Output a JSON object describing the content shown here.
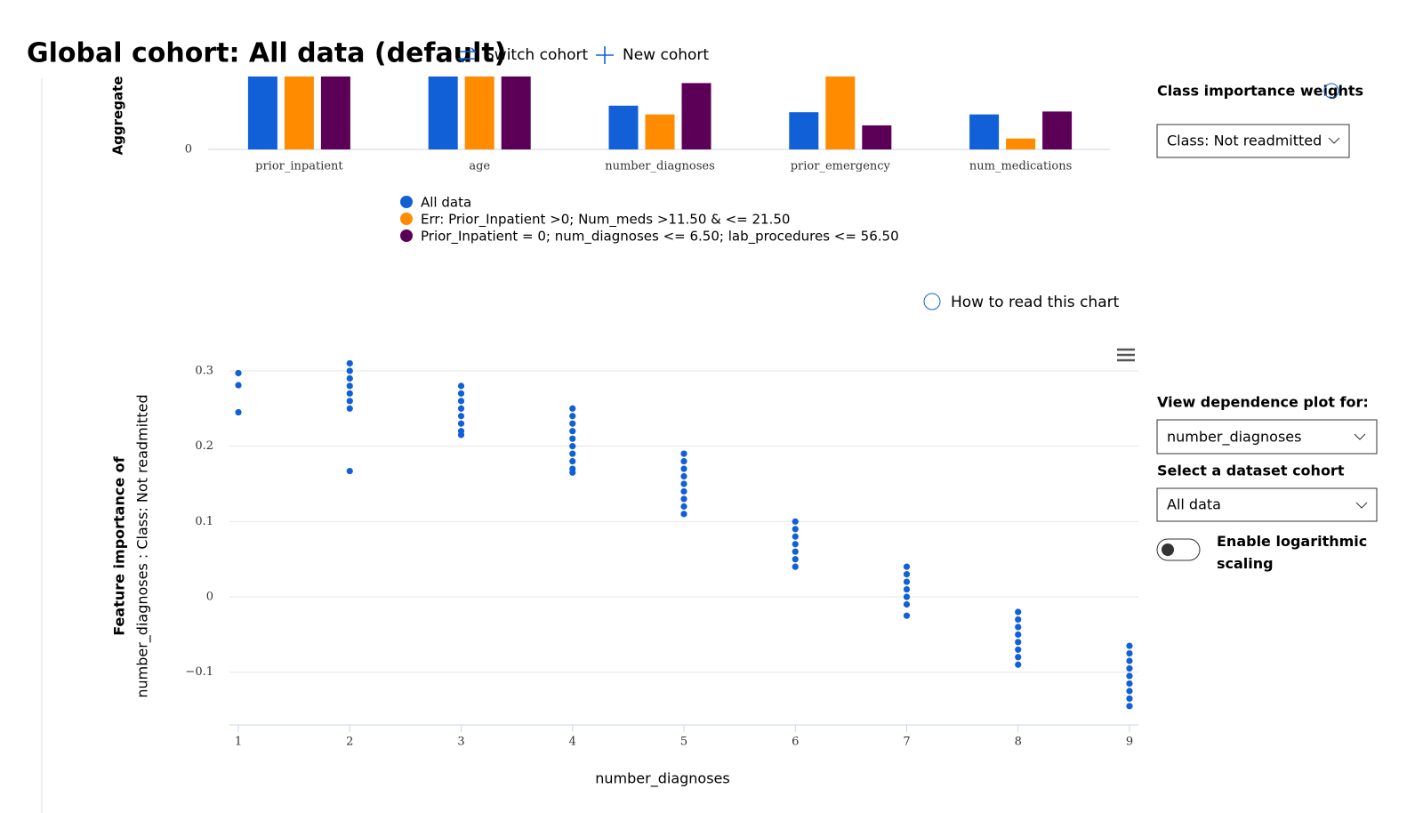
{
  "header": {
    "title": "Global cohort: All data (default)",
    "switch_cohort": "Switch cohort",
    "new_cohort": "New cohort"
  },
  "help_link": "How to read this chart",
  "side_panel": {
    "class_weights_label": "Class importance weights",
    "class_weights_value": "Class: Not readmitted",
    "dependence_label": "View dependence plot for:",
    "dependence_value": "number_diagnoses",
    "cohort_label": "Select a dataset cohort",
    "cohort_value": "All data",
    "log_toggle_label": "Enable logarithmic scaling"
  },
  "chart_data": [
    {
      "type": "bar",
      "ylabel": "Aggregate",
      "categories": [
        "prior_inpatient",
        "age",
        "number_diagnoses",
        "prior_emergency",
        "num_medications"
      ],
      "series": [
        {
          "name": "All data",
          "color": "#1160d8",
          "values": [
            1,
            1,
            0.6,
            0.51,
            0.48
          ]
        },
        {
          "name": "Err: Prior_Inpatient >0; Num_meds >11.50 & <= 21.50",
          "color": "#ff8c00",
          "values": [
            1,
            1,
            0.48,
            1,
            0.15
          ]
        },
        {
          "name": "Prior_Inpatient = 0; num_diagnoses <= 6.50; lab_procedures <= 56.50",
          "color": "#5c0057",
          "values": [
            1,
            1,
            0.91,
            0.33,
            0.52
          ]
        }
      ],
      "ylim": [
        0,
        1
      ],
      "yticks": [
        0
      ]
    },
    {
      "type": "scatter",
      "color": "#1160d8",
      "xlabel": "number_diagnoses",
      "ylabel": [
        "Feature importance of",
        "number_diagnoses : Class: Not readmitted"
      ],
      "x": [
        1,
        1,
        1,
        2,
        2,
        2,
        2,
        2,
        2,
        2,
        2,
        3,
        3,
        3,
        3,
        3,
        3,
        3,
        3,
        4,
        4,
        4,
        4,
        4,
        4,
        4,
        4,
        4,
        4,
        5,
        5,
        5,
        5,
        5,
        5,
        5,
        5,
        5,
        6,
        6,
        6,
        6,
        6,
        6,
        6,
        7,
        7,
        7,
        7,
        7,
        7,
        7,
        8,
        8,
        8,
        8,
        8,
        8,
        8,
        8,
        9,
        9,
        9,
        9,
        9,
        9,
        9,
        9,
        9
      ],
      "y": [
        0.297,
        0.281,
        0.245,
        0.31,
        0.3,
        0.29,
        0.28,
        0.27,
        0.26,
        0.25,
        0.167,
        0.28,
        0.27,
        0.26,
        0.25,
        0.24,
        0.23,
        0.22,
        0.215,
        0.25,
        0.24,
        0.23,
        0.22,
        0.21,
        0.2,
        0.19,
        0.18,
        0.17,
        0.165,
        0.19,
        0.18,
        0.17,
        0.16,
        0.15,
        0.14,
        0.13,
        0.12,
        0.11,
        0.1,
        0.09,
        0.08,
        0.07,
        0.06,
        0.05,
        0.04,
        0.04,
        0.03,
        0.02,
        0.01,
        0,
        -0.01,
        -0.025,
        -0.02,
        -0.03,
        -0.04,
        -0.05,
        -0.06,
        -0.07,
        -0.08,
        -0.09,
        -0.065,
        -0.075,
        -0.085,
        -0.095,
        -0.105,
        -0.115,
        -0.125,
        -0.135,
        -0.145
      ],
      "xlim": [
        0.92,
        9.08
      ],
      "xticks": [
        1,
        2,
        3,
        4,
        5,
        6,
        7,
        8,
        9
      ],
      "ylim": [
        -0.17,
        0.32
      ],
      "yticks": [
        {
          "value": -0.1,
          "label": "−0.1"
        },
        0,
        0.1,
        0.2,
        0.3
      ],
      "grid": true
    }
  ]
}
